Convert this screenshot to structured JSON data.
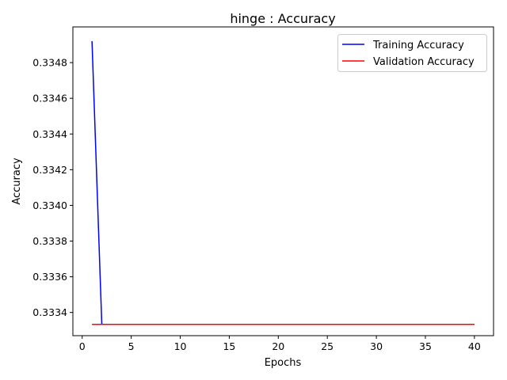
{
  "chart_data": {
    "type": "line",
    "title": "hinge : Accuracy",
    "xlabel": "Epochs",
    "ylabel": "Accuracy",
    "xlim": [
      -0.95,
      41.95
    ],
    "ylim": [
      0.33327,
      0.335
    ],
    "xticks": [
      0,
      5,
      10,
      15,
      20,
      25,
      30,
      35,
      40
    ],
    "yticks": [
      0.3334,
      0.3336,
      0.3338,
      0.334,
      0.3342,
      0.3344,
      0.3346,
      0.3348
    ],
    "ytick_labels": [
      "0.3334",
      "0.3336",
      "0.3338",
      "0.3340",
      "0.3342",
      "0.3344",
      "0.3346",
      "0.3348"
    ],
    "grid": false,
    "legend_position": "top-right",
    "x": [
      1,
      2,
      3,
      4,
      5,
      6,
      7,
      8,
      9,
      10,
      11,
      12,
      13,
      14,
      15,
      16,
      17,
      18,
      19,
      20,
      21,
      22,
      23,
      24,
      25,
      26,
      27,
      28,
      29,
      30,
      31,
      32,
      33,
      34,
      35,
      36,
      37,
      38,
      39,
      40
    ],
    "series": [
      {
        "name": "Training Accuracy",
        "color": "#0000ff",
        "values": [
          0.33492,
          0.333333,
          0.333333,
          0.333333,
          0.333333,
          0.333333,
          0.333333,
          0.333333,
          0.333333,
          0.333333,
          0.333333,
          0.333333,
          0.333333,
          0.333333,
          0.333333,
          0.333333,
          0.333333,
          0.333333,
          0.333333,
          0.333333,
          0.333333,
          0.333333,
          0.333333,
          0.333333,
          0.333333,
          0.333333,
          0.333333,
          0.333333,
          0.333333,
          0.333333,
          0.333333,
          0.333333,
          0.333333,
          0.333333,
          0.333333,
          0.333333,
          0.333333,
          0.333333,
          0.333333,
          0.333333
        ]
      },
      {
        "name": "Validation Accuracy",
        "color": "#ff0000",
        "values": [
          0.333333,
          0.333333,
          0.333333,
          0.333333,
          0.333333,
          0.333333,
          0.333333,
          0.333333,
          0.333333,
          0.333333,
          0.333333,
          0.333333,
          0.333333,
          0.333333,
          0.333333,
          0.333333,
          0.333333,
          0.333333,
          0.333333,
          0.333333,
          0.333333,
          0.333333,
          0.333333,
          0.333333,
          0.333333,
          0.333333,
          0.333333,
          0.333333,
          0.333333,
          0.333333,
          0.333333,
          0.333333,
          0.333333,
          0.333333,
          0.333333,
          0.333333,
          0.333333,
          0.333333,
          0.333333,
          0.333333
        ]
      }
    ]
  }
}
